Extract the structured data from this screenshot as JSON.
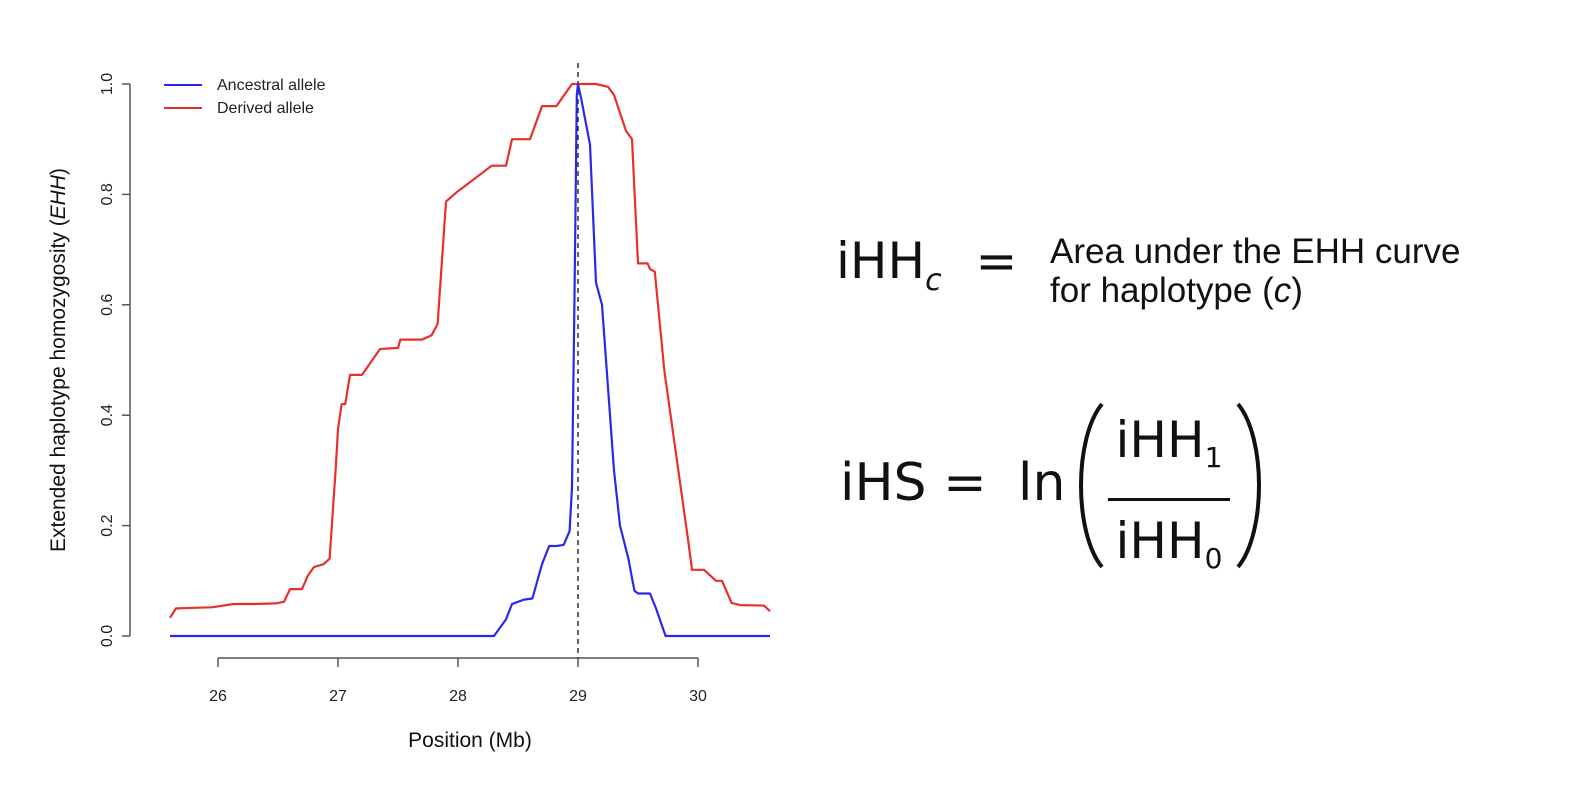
{
  "chart_data": {
    "type": "line",
    "xlabel": "Position (Mb)",
    "ylabel_prefix": "Extended haplotype homozygosity (",
    "ylabel_italic": "EHH",
    "ylabel_suffix": ")",
    "xlim": [
      25.6,
      30.6
    ],
    "ylim": [
      0,
      1
    ],
    "xticks": [
      26,
      27,
      28,
      29,
      30
    ],
    "xtick_labels": [
      "26",
      "27",
      "28",
      "29",
      "30"
    ],
    "yticks": [
      0,
      0.2,
      0.4,
      0.6,
      0.8,
      1.0
    ],
    "ytick_labels": [
      "0.0",
      "0.2",
      "0.4",
      "0.6",
      "0.8",
      "1.0"
    ],
    "grid": false,
    "legend_position": "top-left",
    "vline_x": 29.0,
    "series": [
      {
        "name": "Ancestral allele",
        "color": "#2a2ae6",
        "points": [
          [
            25.6,
            0
          ],
          [
            28.3,
            0
          ],
          [
            28.4,
            0.03
          ],
          [
            28.45,
            0.058
          ],
          [
            28.5,
            0.062
          ],
          [
            28.55,
            0.066
          ],
          [
            28.62,
            0.068
          ],
          [
            28.7,
            0.13
          ],
          [
            28.76,
            0.163
          ],
          [
            28.82,
            0.163
          ],
          [
            28.88,
            0.165
          ],
          [
            28.93,
            0.19
          ],
          [
            28.95,
            0.27
          ],
          [
            28.97,
            0.6
          ],
          [
            28.99,
            0.98
          ],
          [
            29.0,
            1.0
          ],
          [
            29.03,
            0.97
          ],
          [
            29.1,
            0.89
          ],
          [
            29.15,
            0.64
          ],
          [
            29.2,
            0.6
          ],
          [
            29.25,
            0.45
          ],
          [
            29.3,
            0.3
          ],
          [
            29.35,
            0.2
          ],
          [
            29.42,
            0.14
          ],
          [
            29.47,
            0.082
          ],
          [
            29.5,
            0.077
          ],
          [
            29.6,
            0.077
          ],
          [
            29.65,
            0.05
          ],
          [
            29.73,
            0
          ],
          [
            30.6,
            0
          ]
        ]
      },
      {
        "name": "Derived allele",
        "color": "#e8302a",
        "points": [
          [
            25.6,
            0.033
          ],
          [
            25.65,
            0.05
          ],
          [
            25.8,
            0.051
          ],
          [
            25.95,
            0.052
          ],
          [
            26.13,
            0.058
          ],
          [
            26.3,
            0.058
          ],
          [
            26.48,
            0.059
          ],
          [
            26.55,
            0.062
          ],
          [
            26.6,
            0.085
          ],
          [
            26.7,
            0.085
          ],
          [
            26.75,
            0.11
          ],
          [
            26.8,
            0.125
          ],
          [
            26.88,
            0.13
          ],
          [
            26.93,
            0.14
          ],
          [
            26.98,
            0.3
          ],
          [
            27.0,
            0.375
          ],
          [
            27.03,
            0.42
          ],
          [
            27.06,
            0.42
          ],
          [
            27.1,
            0.473
          ],
          [
            27.2,
            0.473
          ],
          [
            27.35,
            0.52
          ],
          [
            27.5,
            0.522
          ],
          [
            27.52,
            0.537
          ],
          [
            27.7,
            0.537
          ],
          [
            27.78,
            0.545
          ],
          [
            27.83,
            0.565
          ],
          [
            27.9,
            0.787
          ],
          [
            28.0,
            0.806
          ],
          [
            28.05,
            0.814
          ],
          [
            28.28,
            0.852
          ],
          [
            28.4,
            0.852
          ],
          [
            28.45,
            0.9
          ],
          [
            28.6,
            0.9
          ],
          [
            28.7,
            0.96
          ],
          [
            28.82,
            0.96
          ],
          [
            28.95,
            1.0
          ],
          [
            29.15,
            1.0
          ],
          [
            29.25,
            0.995
          ],
          [
            29.3,
            0.98
          ],
          [
            29.4,
            0.915
          ],
          [
            29.45,
            0.9
          ],
          [
            29.5,
            0.675
          ],
          [
            29.58,
            0.675
          ],
          [
            29.6,
            0.665
          ],
          [
            29.64,
            0.66
          ],
          [
            29.72,
            0.48
          ],
          [
            29.92,
            0.17
          ],
          [
            29.95,
            0.12
          ],
          [
            30.05,
            0.12
          ],
          [
            30.15,
            0.1
          ],
          [
            30.2,
            0.1
          ],
          [
            30.28,
            0.06
          ],
          [
            30.35,
            0.056
          ],
          [
            30.55,
            0.055
          ],
          [
            30.6,
            0.045
          ]
        ]
      }
    ]
  },
  "equations": {
    "ihhc_main": "iHH",
    "ihhc_sub": "c",
    "equals": "=",
    "ihhc_def_line1": "Area under the EHH curve",
    "ihhc_def_line2_prefix": "for haplotype (",
    "ihhc_def_line2_var": "c",
    "ihhc_def_line2_suffix": ")",
    "ihs_lhs": "iHS =",
    "ihs_ln": "ln",
    "ihs_num_main": "iHH",
    "ihs_num_sub": "1",
    "ihs_den_main": "iHH",
    "ihs_den_sub": "0"
  }
}
